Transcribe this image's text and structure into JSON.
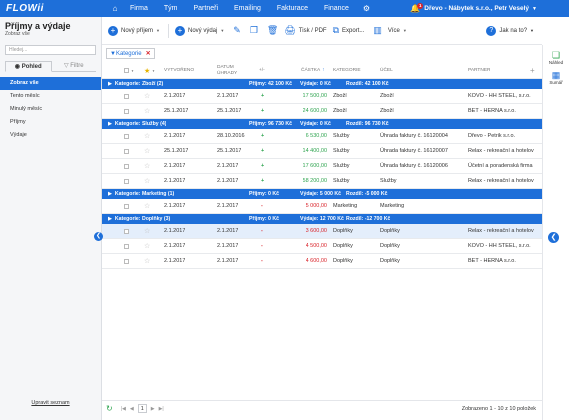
{
  "app": {
    "logo": "FLOWii"
  },
  "nav": {
    "items": [
      "Firma",
      "Tým",
      "Partneři",
      "Emailing",
      "Fakturace",
      "Finance"
    ]
  },
  "company": {
    "name": "Dřevo - Nábytek s.r.o., Petr Veselý",
    "badge": "1"
  },
  "sidebar": {
    "title": "Příjmy a výdaje",
    "subtitle": "Zobraz vše",
    "search_placeholder": "Hledej...",
    "tabs": [
      "Pohled",
      "Filtre"
    ],
    "items": [
      "Zobraz vše",
      "Tento měsíc",
      "Minulý měsíc",
      "Příjmy",
      "Výdaje"
    ],
    "footer": "Upravit seznam"
  },
  "toolbar": {
    "new_income": "Nový příjem",
    "new_expense": "Nový výdaj",
    "print": "Tisk / PDF",
    "export": "Export...",
    "more": "Více",
    "help": "Jak na to?"
  },
  "filter": {
    "label": "Kategorie"
  },
  "columns": [
    "VYTVOŘENO",
    "DATUM ÚHRADY",
    "+/-",
    "ČÁSTKA",
    "KATEGORIE",
    "ÚČEL",
    "PARTNER"
  ],
  "groups": [
    {
      "title": "Kategorie: Zboží (2)",
      "prijmy": "Příjmy: 42 100 Kč",
      "vydaje": "Výdaje: 0 Kč",
      "rozdil": "Rozdíl: 42 100 Kč",
      "rows": [
        {
          "created": "2.1.2017",
          "paid": "2.1.2017",
          "sign": "+",
          "amount": "17 500,00",
          "category": "Zboží",
          "purpose": "Zboží",
          "partner": "KOVO - HH STEEL, s.r.o."
        },
        {
          "created": "25.1.2017",
          "paid": "25.1.2017",
          "sign": "+",
          "amount": "24 600,00",
          "category": "Zboží",
          "purpose": "Zboží",
          "partner": "BET - HERNA s.r.o."
        }
      ]
    },
    {
      "title": "Kategorie: Služby (4)",
      "prijmy": "Příjmy: 96 730 Kč",
      "vydaje": "Výdaje: 0 Kč",
      "rozdil": "Rozdíl: 96 730 Kč",
      "rows": [
        {
          "created": "2.1.2017",
          "paid": "28.10.2016",
          "sign": "+",
          "amount": "6 530,00",
          "category": "Služby",
          "purpose": "Úhrada faktury č. 16120004",
          "partner": "Dřevo - Petrik s.r.o."
        },
        {
          "created": "25.1.2017",
          "paid": "25.1.2017",
          "sign": "+",
          "amount": "14 400,00",
          "category": "Služby",
          "purpose": "Úhrada faktury č. 16120007",
          "partner": "Relax - rekreační a hotelov"
        },
        {
          "created": "2.1.2017",
          "paid": "2.1.2017",
          "sign": "+",
          "amount": "17 600,00",
          "category": "Služby",
          "purpose": "Úhrada faktury č. 16120006",
          "partner": "Účetní a poradenská firma"
        },
        {
          "created": "2.1.2017",
          "paid": "2.1.2017",
          "sign": "+",
          "amount": "58 200,00",
          "category": "Služby",
          "purpose": "Služby",
          "partner": "Relax - rekreační a hotelov"
        }
      ]
    },
    {
      "title": "Kategorie: Marketing (1)",
      "prijmy": "Příjmy: 0 Kč",
      "vydaje": "Výdaje: 5 000 Kč",
      "rozdil": "Rozdíl: -5 000 Kč",
      "rows": [
        {
          "created": "2.1.2017",
          "paid": "2.1.2017",
          "sign": "-",
          "amount": "5 000,00",
          "category": "Marketing",
          "purpose": "Marketing",
          "partner": ""
        }
      ]
    },
    {
      "title": "Kategorie: Doplňky (3)",
      "prijmy": "Příjmy: 0 Kč",
      "vydaje": "Výdaje: 12 700 Kč",
      "rozdil": "Rozdíl: -12 700 Kč",
      "rows": [
        {
          "created": "2.1.2017",
          "paid": "2.1.2017",
          "sign": "-",
          "amount": "3 600,00",
          "category": "Doplňky",
          "purpose": "Doplňky",
          "partner": "Relax - rekreační a hotelov"
        },
        {
          "created": "2.1.2017",
          "paid": "2.1.2017",
          "sign": "-",
          "amount": "4 500,00",
          "category": "Doplňky",
          "purpose": "Doplňky",
          "partner": "KOVO - HH STEEL, s.r.o."
        },
        {
          "created": "2.1.2017",
          "paid": "2.1.2017",
          "sign": "-",
          "amount": "4 600,00",
          "category": "Doplňky",
          "purpose": "Doplňky",
          "partner": "BET - HERNA s.r.o."
        }
      ]
    }
  ],
  "rail": {
    "items": [
      "Náhled",
      "Sumář"
    ]
  },
  "pager": {
    "page": "1",
    "summary": "Zobrazeno 1 - 10 z 10 položek"
  },
  "colors": {
    "accent": "#1e6fd9",
    "positive": "#2ea44f",
    "negative": "#d9232a"
  }
}
